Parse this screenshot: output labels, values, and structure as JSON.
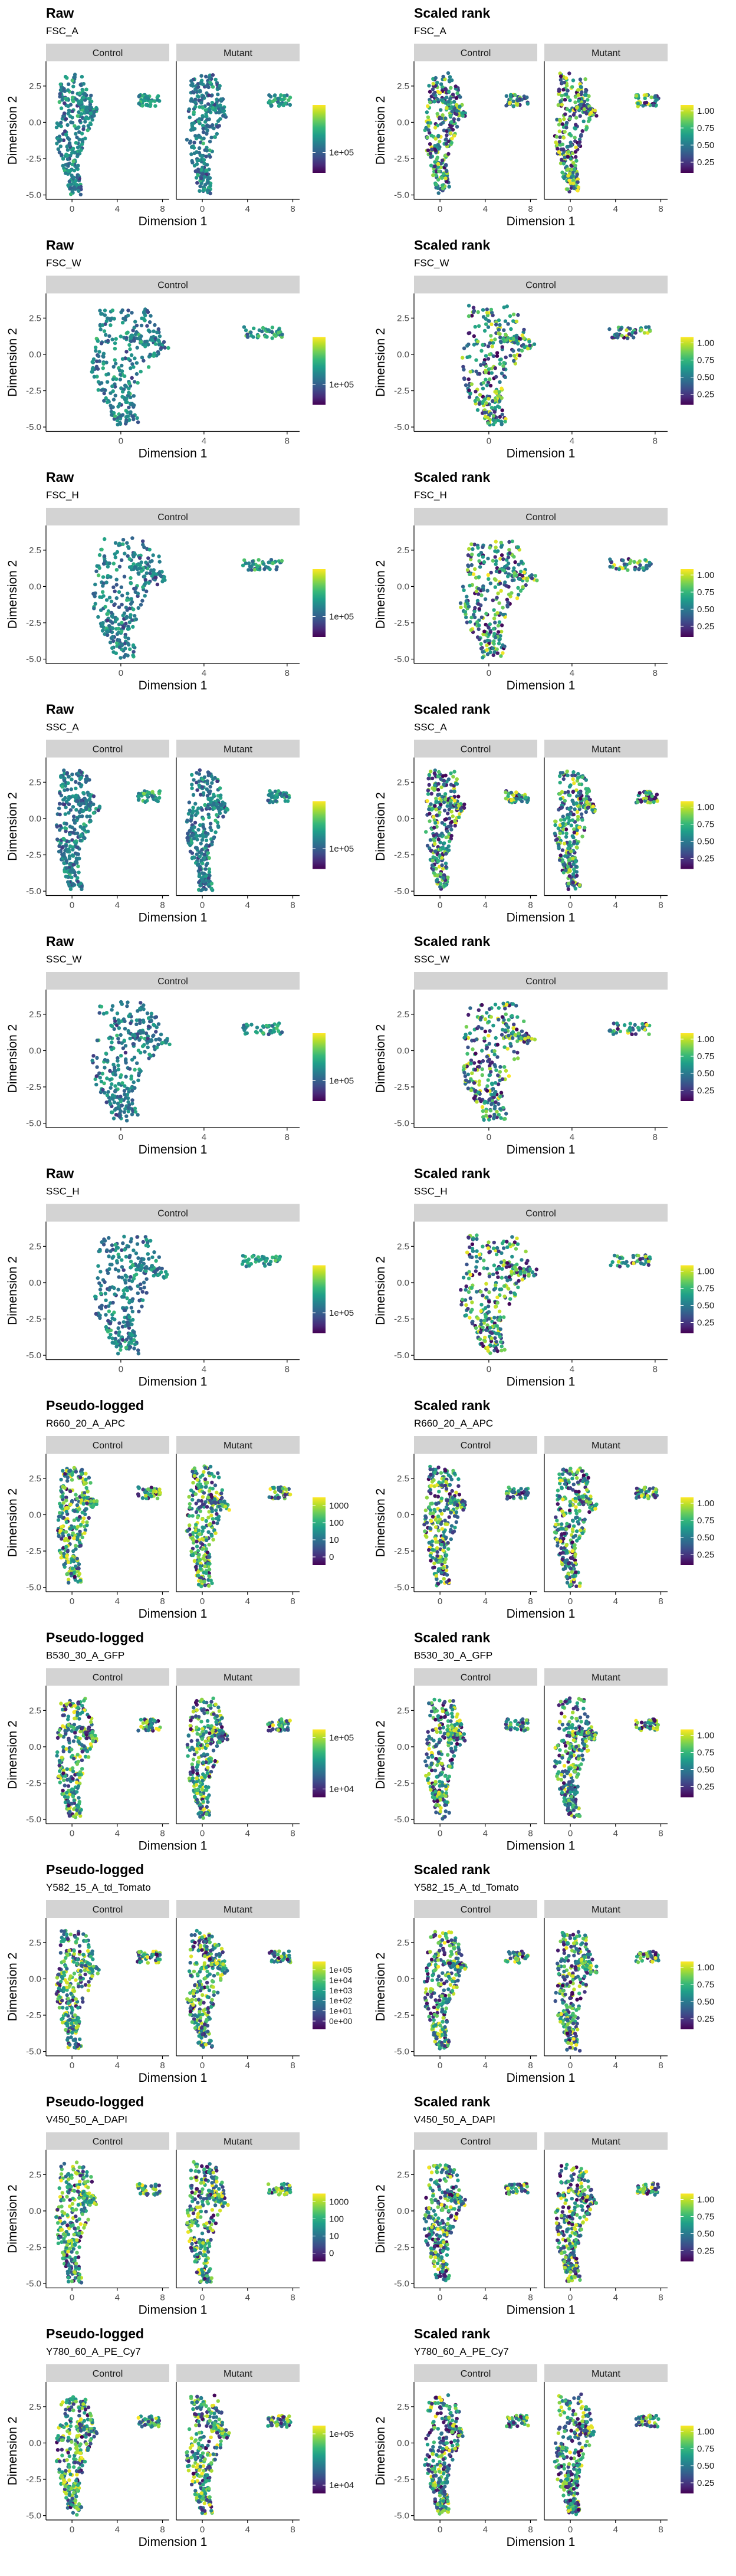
{
  "figure": {
    "panels": [
      {
        "row": 0,
        "col": 0,
        "title": "Raw",
        "subtitle": "FSC_A",
        "facets": [
          "Control",
          "Mutant"
        ],
        "xlabel": "Dimension 1",
        "ylabel": "Dimension 2",
        "legend_ticks": [
          "1e+05"
        ],
        "color_mode": "raw"
      },
      {
        "row": 0,
        "col": 1,
        "title": "Scaled rank",
        "subtitle": "FSC_A",
        "facets": [
          "Control",
          "Mutant"
        ],
        "xlabel": "Dimension 1",
        "ylabel": "Dimension 2",
        "legend_ticks": [
          "1.00",
          "0.75",
          "0.50",
          "0.25"
        ],
        "color_mode": "rank"
      },
      {
        "row": 1,
        "col": 0,
        "title": "Raw",
        "subtitle": "FSC_W",
        "facets": [
          "Control"
        ],
        "xlabel": "Dimension 1",
        "ylabel": "Dimension 2",
        "legend_ticks": [
          "1e+05"
        ],
        "color_mode": "raw"
      },
      {
        "row": 1,
        "col": 1,
        "title": "Scaled rank",
        "subtitle": "FSC_W",
        "facets": [
          "Control"
        ],
        "xlabel": "Dimension 1",
        "ylabel": "Dimension 2",
        "legend_ticks": [
          "1.00",
          "0.75",
          "0.50",
          "0.25"
        ],
        "color_mode": "rank"
      },
      {
        "row": 2,
        "col": 0,
        "title": "Raw",
        "subtitle": "FSC_H",
        "facets": [
          "Control"
        ],
        "xlabel": "Dimension 1",
        "ylabel": "Dimension 2",
        "legend_ticks": [
          "1e+05"
        ],
        "color_mode": "raw"
      },
      {
        "row": 2,
        "col": 1,
        "title": "Scaled rank",
        "subtitle": "FSC_H",
        "facets": [
          "Control"
        ],
        "xlabel": "Dimension 1",
        "ylabel": "Dimension 2",
        "legend_ticks": [
          "1.00",
          "0.75",
          "0.50",
          "0.25"
        ],
        "color_mode": "rank"
      },
      {
        "row": 3,
        "col": 0,
        "title": "Raw",
        "subtitle": "SSC_A",
        "facets": [
          "Control",
          "Mutant"
        ],
        "xlabel": "Dimension 1",
        "ylabel": "Dimension 2",
        "legend_ticks": [
          "1e+05"
        ],
        "color_mode": "raw"
      },
      {
        "row": 3,
        "col": 1,
        "title": "Scaled rank",
        "subtitle": "SSC_A",
        "facets": [
          "Control",
          "Mutant"
        ],
        "xlabel": "Dimension 1",
        "ylabel": "Dimension 2",
        "legend_ticks": [
          "1.00",
          "0.75",
          "0.50",
          "0.25"
        ],
        "color_mode": "rank"
      },
      {
        "row": 4,
        "col": 0,
        "title": "Raw",
        "subtitle": "SSC_W",
        "facets": [
          "Control"
        ],
        "xlabel": "Dimension 1",
        "ylabel": "Dimension 2",
        "legend_ticks": [
          "1e+05"
        ],
        "color_mode": "raw"
      },
      {
        "row": 4,
        "col": 1,
        "title": "Scaled rank",
        "subtitle": "SSC_W",
        "facets": [
          "Control"
        ],
        "xlabel": "Dimension 1",
        "ylabel": "Dimension 2",
        "legend_ticks": [
          "1.00",
          "0.75",
          "0.50",
          "0.25"
        ],
        "color_mode": "rank"
      },
      {
        "row": 5,
        "col": 0,
        "title": "Raw",
        "subtitle": "SSC_H",
        "facets": [
          "Control"
        ],
        "xlabel": "Dimension 1",
        "ylabel": "Dimension 2",
        "legend_ticks": [
          "1e+05"
        ],
        "color_mode": "raw"
      },
      {
        "row": 5,
        "col": 1,
        "title": "Scaled rank",
        "subtitle": "SSC_H",
        "facets": [
          "Control"
        ],
        "xlabel": "Dimension 1",
        "ylabel": "Dimension 2",
        "legend_ticks": [
          "1.00",
          "0.75",
          "0.50",
          "0.25"
        ],
        "color_mode": "rank"
      },
      {
        "row": 6,
        "col": 0,
        "title": "Pseudo-logged",
        "subtitle": "R660_20_A_APC",
        "facets": [
          "Control",
          "Mutant"
        ],
        "xlabel": "Dimension 1",
        "ylabel": "Dimension 2",
        "legend_ticks": [
          "1000",
          "100",
          "10",
          "0"
        ],
        "color_mode": "pseudo"
      },
      {
        "row": 6,
        "col": 1,
        "title": "Scaled rank",
        "subtitle": "R660_20_A_APC",
        "facets": [
          "Control",
          "Mutant"
        ],
        "xlabel": "Dimension 1",
        "ylabel": "Dimension 2",
        "legend_ticks": [
          "1.00",
          "0.75",
          "0.50",
          "0.25"
        ],
        "color_mode": "rank"
      },
      {
        "row": 7,
        "col": 0,
        "title": "Pseudo-logged",
        "subtitle": "B530_30_A_GFP",
        "facets": [
          "Control",
          "Mutant"
        ],
        "xlabel": "Dimension 1",
        "ylabel": "Dimension 2",
        "legend_ticks": [
          "1e+05",
          "1e+04"
        ],
        "color_mode": "pseudo"
      },
      {
        "row": 7,
        "col": 1,
        "title": "Scaled rank",
        "subtitle": "B530_30_A_GFP",
        "facets": [
          "Control",
          "Mutant"
        ],
        "xlabel": "Dimension 1",
        "ylabel": "Dimension 2",
        "legend_ticks": [
          "1.00",
          "0.75",
          "0.50",
          "0.25"
        ],
        "color_mode": "rank"
      },
      {
        "row": 8,
        "col": 0,
        "title": "Pseudo-logged",
        "subtitle": "Y582_15_A_td_Tomato",
        "facets": [
          "Control",
          "Mutant"
        ],
        "xlabel": "Dimension 1",
        "ylabel": "Dimension 2",
        "legend_ticks": [
          "1e+05",
          "1e+04",
          "1e+03",
          "1e+02",
          "1e+01",
          "0e+00"
        ],
        "color_mode": "pseudo"
      },
      {
        "row": 8,
        "col": 1,
        "title": "Scaled rank",
        "subtitle": "Y582_15_A_td_Tomato",
        "facets": [
          "Control",
          "Mutant"
        ],
        "xlabel": "Dimension 1",
        "ylabel": "Dimension 2",
        "legend_ticks": [
          "1.00",
          "0.75",
          "0.50",
          "0.25"
        ],
        "color_mode": "rank"
      },
      {
        "row": 9,
        "col": 0,
        "title": "Pseudo-logged",
        "subtitle": "V450_50_A_DAPI",
        "facets": [
          "Control",
          "Mutant"
        ],
        "xlabel": "Dimension 1",
        "ylabel": "Dimension 2",
        "legend_ticks": [
          "1000",
          "100",
          "10",
          "0"
        ],
        "color_mode": "pseudo"
      },
      {
        "row": 9,
        "col": 1,
        "title": "Scaled rank",
        "subtitle": "V450_50_A_DAPI",
        "facets": [
          "Control",
          "Mutant"
        ],
        "xlabel": "Dimension 1",
        "ylabel": "Dimension 2",
        "legend_ticks": [
          "1.00",
          "0.75",
          "0.50",
          "0.25"
        ],
        "color_mode": "rank"
      },
      {
        "row": 10,
        "col": 0,
        "title": "Pseudo-logged",
        "subtitle": "Y780_60_A_PE_Cy7",
        "facets": [
          "Control",
          "Mutant"
        ],
        "xlabel": "Dimension 1",
        "ylabel": "Dimension 2",
        "legend_ticks": [
          "1e+05",
          "1e+04"
        ],
        "color_mode": "pseudo"
      },
      {
        "row": 10,
        "col": 1,
        "title": "Scaled rank",
        "subtitle": "Y780_60_A_PE_Cy7",
        "facets": [
          "Control",
          "Mutant"
        ],
        "xlabel": "Dimension 1",
        "ylabel": "Dimension 2",
        "legend_ticks": [
          "1.00",
          "0.75",
          "0.50",
          "0.25"
        ],
        "color_mode": "rank"
      }
    ],
    "colors": {
      "strip": "#d3d3d3",
      "viridis": [
        "#440154",
        "#482878",
        "#3e4a89",
        "#31688e",
        "#26828e",
        "#1f9e89",
        "#35b779",
        "#6ece58",
        "#b5de2b",
        "#fde725"
      ]
    }
  },
  "chart_data": {
    "type": "scatter",
    "xticks": {
      "two_facets": [
        "0",
        "4",
        "8"
      ],
      "one_facet": [
        "0",
        "4",
        "8"
      ]
    },
    "yticks": [
      "2.5",
      "0.0",
      "-2.5",
      "-5.0"
    ],
    "xlim": {
      "two_facets": [
        -2.3,
        8.6
      ],
      "one_facet": [
        -3.6,
        8.6
      ]
    },
    "ylim": [
      -5.3,
      4.2
    ],
    "grid": false,
    "legend_position": "right",
    "point_clusters": [
      {
        "name": "main",
        "x_center": 0.2,
        "y_center": -0.3
      },
      {
        "name": "small",
        "x_center": 6.6,
        "y_center": 1.5
      }
    ]
  }
}
